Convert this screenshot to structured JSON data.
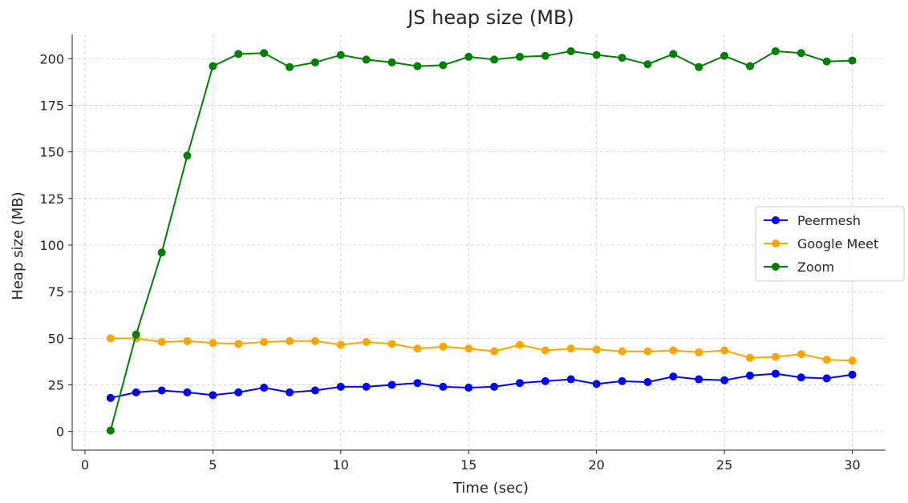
{
  "chart_data": {
    "type": "line",
    "title": "JS heap size (MB)",
    "xlabel": "Time (sec)",
    "ylabel": "Heap size (MB)",
    "xlim": [
      -0.5,
      31.3
    ],
    "ylim": [
      -10,
      213
    ],
    "xticks": [
      0,
      5,
      10,
      15,
      20,
      25,
      30
    ],
    "yticks": [
      0,
      25,
      50,
      75,
      100,
      125,
      150,
      175,
      200
    ],
    "grid": true,
    "legend_position": "center-right",
    "x": [
      1,
      2,
      3,
      4,
      5,
      6,
      7,
      8,
      9,
      10,
      11,
      12,
      13,
      14,
      15,
      16,
      17,
      18,
      19,
      20,
      21,
      22,
      23,
      24,
      25,
      26,
      27,
      28,
      29,
      30
    ],
    "series": [
      {
        "name": "Peermesh",
        "color": "#0000ff",
        "values": [
          18,
          21,
          22,
          21,
          19.5,
          21,
          23.5,
          21,
          22,
          24,
          24,
          25,
          26,
          24,
          23.5,
          24,
          26,
          27,
          28,
          25.5,
          27,
          26.5,
          29.5,
          28,
          27.5,
          30,
          31,
          29,
          28.5,
          30.5
        ]
      },
      {
        "name": "Google Meet",
        "color": "#ffa500",
        "values": [
          50,
          50,
          48,
          48.5,
          47.5,
          47,
          48,
          48.5,
          48.5,
          46.5,
          48,
          47,
          44.5,
          45.5,
          44.5,
          43,
          46.5,
          43.5,
          44.5,
          44,
          43,
          43,
          43.5,
          42.5,
          43.5,
          39.5,
          40,
          41.5,
          38.5,
          38
        ]
      },
      {
        "name": "Zoom",
        "color": "#008000",
        "values": [
          0.5,
          52,
          96,
          148,
          196,
          202.5,
          203,
          195.5,
          198,
          202,
          199.5,
          198,
          196,
          196.5,
          201,
          199.5,
          201,
          201.5,
          204,
          202,
          200.5,
          197,
          202.5,
          195.5,
          201.5,
          196,
          204,
          203,
          198.5,
          199
        ]
      }
    ]
  }
}
